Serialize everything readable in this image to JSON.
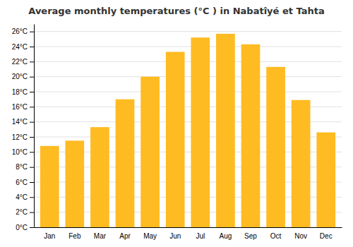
{
  "chart_data": {
    "type": "bar",
    "title": "Average monthly temperatures (°C ) in Nabatîyé et Tahta",
    "categories": [
      "Jan",
      "Feb",
      "Mar",
      "Apr",
      "May",
      "Jun",
      "Jul",
      "Aug",
      "Sep",
      "Oct",
      "Nov",
      "Dec"
    ],
    "values": [
      10.8,
      11.5,
      13.3,
      17.0,
      20.0,
      23.3,
      25.2,
      25.7,
      24.3,
      21.3,
      16.9,
      12.6
    ],
    "color": "#FFBB22",
    "ylim": [
      0,
      27
    ],
    "yticks": [
      {
        "value": 0,
        "label": "0°C"
      },
      {
        "value": 2,
        "label": "2°C"
      },
      {
        "value": 4,
        "label": "4°C"
      },
      {
        "value": 6,
        "label": "6°C"
      },
      {
        "value": 8,
        "label": "8°C"
      },
      {
        "value": 10,
        "label": "10°C"
      },
      {
        "value": 12,
        "label": "12°C"
      },
      {
        "value": 14,
        "label": "14°C"
      },
      {
        "value": 16,
        "label": "16°C"
      },
      {
        "value": 18,
        "label": "18°C"
      },
      {
        "value": 20,
        "label": "20°C"
      },
      {
        "value": 22,
        "label": "22°C"
      },
      {
        "value": 24,
        "label": "24°C"
      },
      {
        "value": 26,
        "label": "26°C"
      }
    ],
    "grid": true
  }
}
